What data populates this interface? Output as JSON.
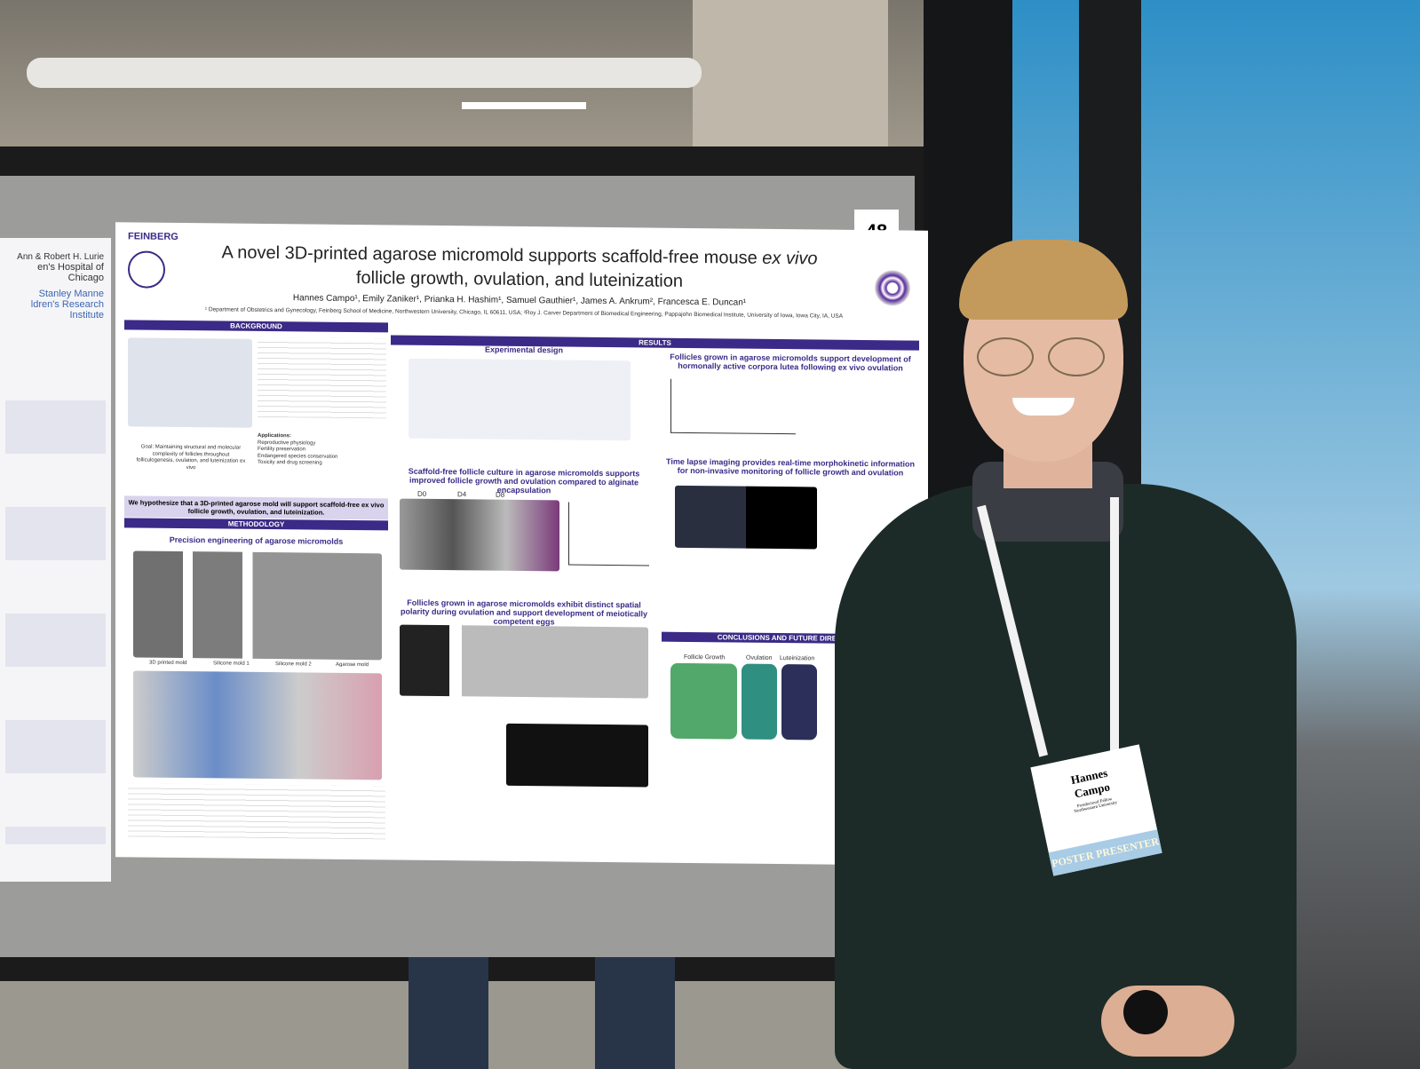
{
  "board_number": "48",
  "left_poster": {
    "lines": [
      "Ann & Robert H. Lurie",
      "en's Hospital of Chicago",
      "Stanley Manne",
      "ldren's Research Institute"
    ]
  },
  "poster": {
    "institution": "FEINBERG",
    "title": {
      "part1": "A novel 3D-printed agarose micromold supports scaffold-free mouse ",
      "italic": "ex vivo",
      "part2": "follicle growth, ovulation, and luteinization"
    },
    "authors": "Hannes Campo¹, Emily Zaniker¹, Prianka H. Hashim¹, Samuel Gauthier¹, James A. Ankrum², Francesca E. Duncan¹",
    "affiliations": "¹ Department of Obstetrics and Gynecology, Feinberg School of Medicine, Northwestern University, Chicago, IL 60611, USA; ²Roy J. Carver Department of Biomedical Engineering, Pappajohn Biomedical Institute, University of Iowa, Iowa City, IA, USA",
    "background": {
      "header": "BACKGROUND",
      "goal": "Goal: Maintaining structural and molecular complexity of follicles throughout folliculogenesis, ovulation, and luteinization ex vivo",
      "applications": [
        "Applications:",
        "Reproductive physiology",
        "Fertility preservation",
        "Endangered species conservation",
        "Toxicity and drug screening"
      ],
      "hypothesis": "We hypothesize that a 3D-printed agarose mold will support scaffold-free ex vivo follicle growth, ovulation, and luteinization."
    },
    "methodology": {
      "header": "METHODOLOGY",
      "subheader": "Precision engineering of agarose micromolds",
      "labels": [
        "3D printed mold",
        "Silicone mold 1",
        "Silicone mold 2",
        "Agarose mold"
      ]
    },
    "results": {
      "header": "RESULTS",
      "experimental_design": "Experimental design",
      "growth": "Scaffold-free follicle culture in agarose micromolds supports improved follicle growth and ovulation compared to alginate encapsulation",
      "growth_cols": [
        "D0",
        "D4",
        "D8"
      ],
      "polarity": "Follicles grown in agarose micromolds exhibit distinct spatial polarity during ovulation and support development of meiotically competent eggs",
      "luteinization": "Follicles grown in agarose micromolds support development of hormonally active corpora lutea following ex vivo ovulation",
      "timelapse": "Time lapse imaging provides real-time morphokinetic information for non-invasive monitoring of follicle growth and ovulation"
    },
    "conclusions": {
      "header": "CONCLUSIONS AND FUTURE DIRECTIONS",
      "columns": [
        "Follicle Growth",
        "Ovulation",
        "Luteinization"
      ]
    }
  },
  "badge": {
    "name": "Hannes Campo",
    "role": "Postdoctoral Fellow",
    "org": "Northwestern University",
    "ribbon": "POSTER PRESENTER"
  }
}
